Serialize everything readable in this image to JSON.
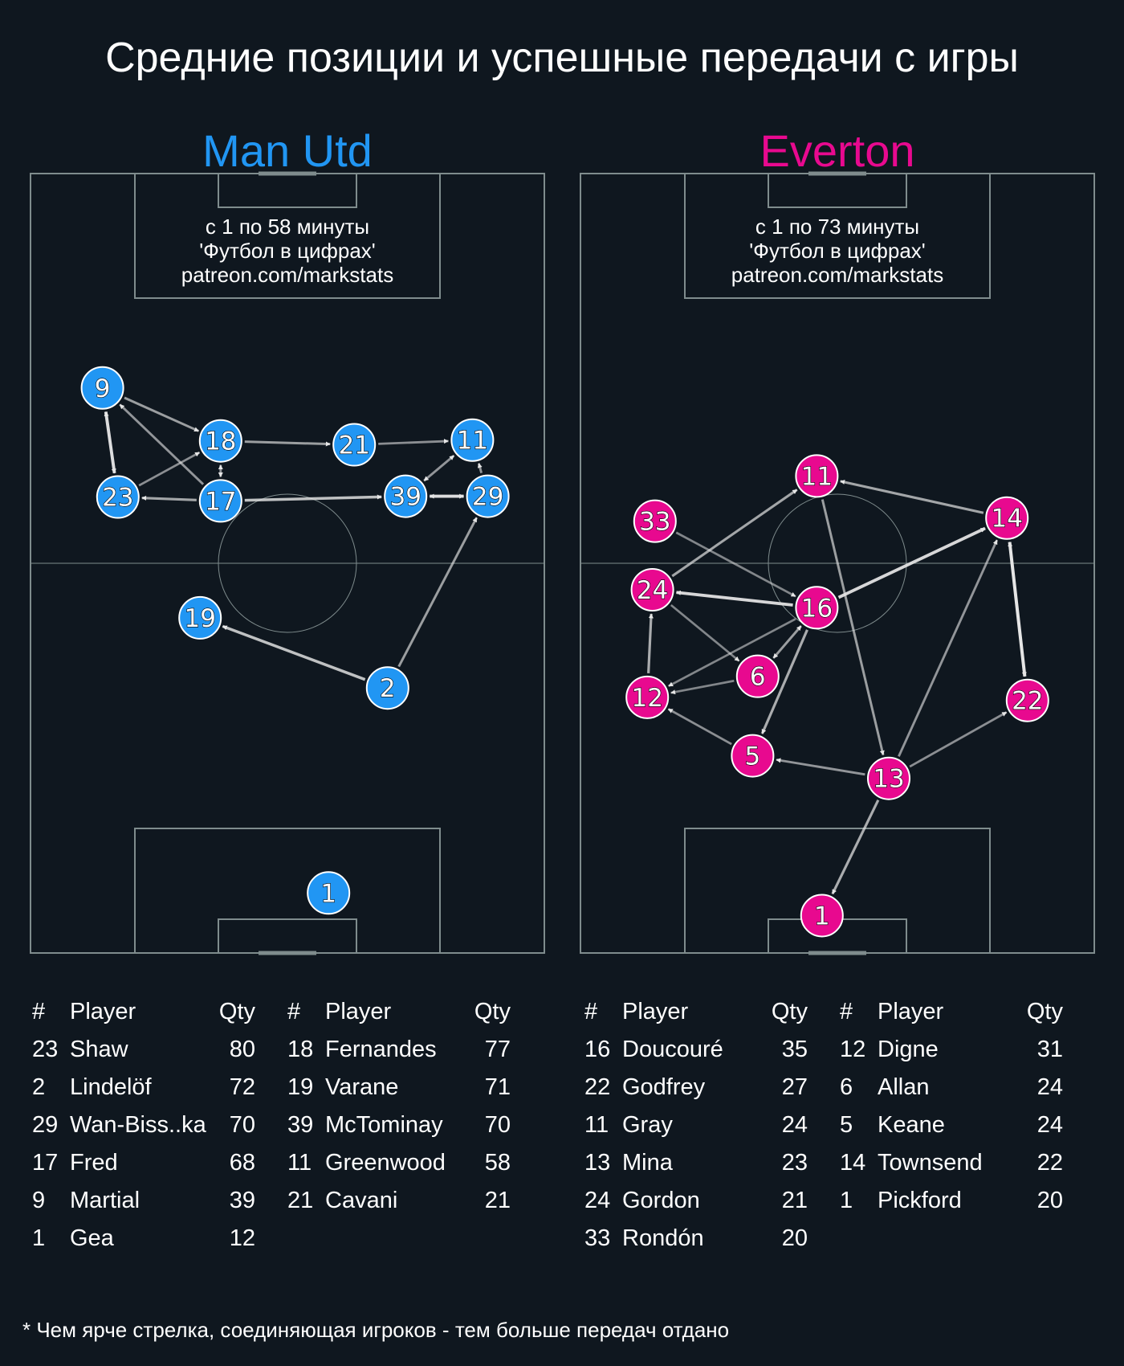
{
  "title": "Средние позиции и успешные передачи с игры",
  "footnote": "* Чем ярче стрелка, соединяющая игроков - тем больше передач отдано",
  "table_headers": {
    "num": "#",
    "player": "Player",
    "qty": "Qty"
  },
  "colors": {
    "background": "#0f171f",
    "pitch_line": "#7f8c8d",
    "man_utd": "#2196f3",
    "everton": "#e8098f"
  },
  "teams": [
    {
      "name": "Man Utd",
      "color": "#2196f3",
      "info": [
        "с 1 по 58 минуты",
        "'Футбол в цифрах'",
        "patreon.com/markstats"
      ],
      "table_columns": [
        [
          {
            "num": "23",
            "player": "Shaw",
            "qty": "80"
          },
          {
            "num": "2",
            "player": "Lindelöf",
            "qty": "72"
          },
          {
            "num": "29",
            "player": "Wan-Biss..ka",
            "qty": "70"
          },
          {
            "num": "17",
            "player": "Fred",
            "qty": "68"
          },
          {
            "num": "9",
            "player": "Martial",
            "qty": "39"
          },
          {
            "num": "1",
            "player": "Gea",
            "qty": "12"
          }
        ],
        [
          {
            "num": "18",
            "player": "Fernandes",
            "qty": "77"
          },
          {
            "num": "19",
            "player": "Varane",
            "qty": "71"
          },
          {
            "num": "39",
            "player": "McTominay",
            "qty": "70"
          },
          {
            "num": "11",
            "player": "Greenwood",
            "qty": "58"
          },
          {
            "num": "21",
            "player": "Cavani",
            "qty": "21"
          }
        ]
      ]
    },
    {
      "name": "Everton",
      "color": "#e8098f",
      "info": [
        "с 1 по 73 минуты",
        "'Футбол в цифрах'",
        "patreon.com/markstats"
      ],
      "table_columns": [
        [
          {
            "num": "16",
            "player": "Doucouré",
            "qty": "35"
          },
          {
            "num": "22",
            "player": "Godfrey",
            "qty": "27"
          },
          {
            "num": "11",
            "player": "Gray",
            "qty": "24"
          },
          {
            "num": "13",
            "player": "Mina",
            "qty": "23"
          },
          {
            "num": "24",
            "player": "Gordon",
            "qty": "21"
          },
          {
            "num": "33",
            "player": "Rondón",
            "qty": "20"
          }
        ],
        [
          {
            "num": "12",
            "player": "Digne",
            "qty": "31"
          },
          {
            "num": "6",
            "player": "Allan",
            "qty": "24"
          },
          {
            "num": "5",
            "player": "Keane",
            "qty": "24"
          },
          {
            "num": "14",
            "player": "Townsend",
            "qty": "22"
          },
          {
            "num": "1",
            "player": "Pickford",
            "qty": "20"
          }
        ]
      ]
    }
  ],
  "chart_data": [
    {
      "type": "scatter",
      "team": "Man Utd",
      "description_units": "x: 0-100 pitch width (left to right), y: 0-100 pitch length (0 = own goal line at bottom, 100 = opponent goal line at top)",
      "players": [
        {
          "num": "9",
          "x": 14,
          "y": 72.5
        },
        {
          "num": "18",
          "x": 37,
          "y": 65.7
        },
        {
          "num": "21",
          "x": 63,
          "y": 65.2
        },
        {
          "num": "11",
          "x": 86,
          "y": 65.8
        },
        {
          "num": "23",
          "x": 17,
          "y": 58.5
        },
        {
          "num": "17",
          "x": 37,
          "y": 58
        },
        {
          "num": "39",
          "x": 73,
          "y": 58.6
        },
        {
          "num": "29",
          "x": 89,
          "y": 58.6
        },
        {
          "num": "19",
          "x": 33,
          "y": 43
        },
        {
          "num": "2",
          "x": 69.5,
          "y": 34
        },
        {
          "num": "1",
          "x": 58,
          "y": 7.7
        }
      ],
      "passes": [
        {
          "from": "9",
          "to": "23",
          "strength": 0.95,
          "both": true
        },
        {
          "from": "9",
          "to": "18",
          "strength": 0.5
        },
        {
          "from": "17",
          "to": "9",
          "strength": 0.45
        },
        {
          "from": "23",
          "to": "18",
          "strength": 0.4
        },
        {
          "from": "17",
          "to": "23",
          "strength": 0.55
        },
        {
          "from": "18",
          "to": "17",
          "strength": 0.45,
          "both": true
        },
        {
          "from": "18",
          "to": "21",
          "strength": 0.5
        },
        {
          "from": "21",
          "to": "11",
          "strength": 0.4
        },
        {
          "from": "17",
          "to": "39",
          "strength": 0.75
        },
        {
          "from": "39",
          "to": "11",
          "strength": 0.45,
          "both": true
        },
        {
          "from": "39",
          "to": "29",
          "strength": 0.95,
          "both": true
        },
        {
          "from": "29",
          "to": "11",
          "strength": 0.45
        },
        {
          "from": "2",
          "to": "19",
          "strength": 0.75
        },
        {
          "from": "2",
          "to": "29",
          "strength": 0.5
        }
      ]
    },
    {
      "type": "scatter",
      "team": "Everton",
      "description_units": "x: 0-100 pitch width (left to right), y: 0-100 pitch length (0 = own goal line at bottom, 100 = opponent goal line at top)",
      "players": [
        {
          "num": "11",
          "x": 46,
          "y": 61.2
        },
        {
          "num": "33",
          "x": 14.5,
          "y": 55.4
        },
        {
          "num": "14",
          "x": 83,
          "y": 55.8
        },
        {
          "num": "24",
          "x": 14,
          "y": 46.6
        },
        {
          "num": "16",
          "x": 46,
          "y": 44.3
        },
        {
          "num": "6",
          "x": 34.5,
          "y": 35.5
        },
        {
          "num": "12",
          "x": 13,
          "y": 32.8
        },
        {
          "num": "22",
          "x": 87,
          "y": 32.4
        },
        {
          "num": "5",
          "x": 33.5,
          "y": 25.3
        },
        {
          "num": "13",
          "x": 60,
          "y": 22.4
        },
        {
          "num": "1",
          "x": 47,
          "y": 4.8
        }
      ],
      "passes": [
        {
          "from": "24",
          "to": "11",
          "strength": 0.55
        },
        {
          "from": "14",
          "to": "11",
          "strength": 0.55
        },
        {
          "from": "11",
          "to": "13",
          "strength": 0.5
        },
        {
          "from": "33",
          "to": "16",
          "strength": 0.35
        },
        {
          "from": "16",
          "to": "24",
          "strength": 0.9
        },
        {
          "from": "16",
          "to": "14",
          "strength": 0.9
        },
        {
          "from": "24",
          "to": "6",
          "strength": 0.35
        },
        {
          "from": "16",
          "to": "12",
          "strength": 0.35
        },
        {
          "from": "16",
          "to": "6",
          "strength": 0.5,
          "both": true
        },
        {
          "from": "16",
          "to": "5",
          "strength": 0.6
        },
        {
          "from": "6",
          "to": "12",
          "strength": 0.35
        },
        {
          "from": "12",
          "to": "24",
          "strength": 0.6
        },
        {
          "from": "5",
          "to": "12",
          "strength": 0.4
        },
        {
          "from": "13",
          "to": "5",
          "strength": 0.45
        },
        {
          "from": "13",
          "to": "14",
          "strength": 0.45
        },
        {
          "from": "13",
          "to": "22",
          "strength": 0.4
        },
        {
          "from": "14",
          "to": "22",
          "strength": 1.0,
          "both": true
        },
        {
          "from": "13",
          "to": "1",
          "strength": 0.6
        }
      ]
    }
  ]
}
